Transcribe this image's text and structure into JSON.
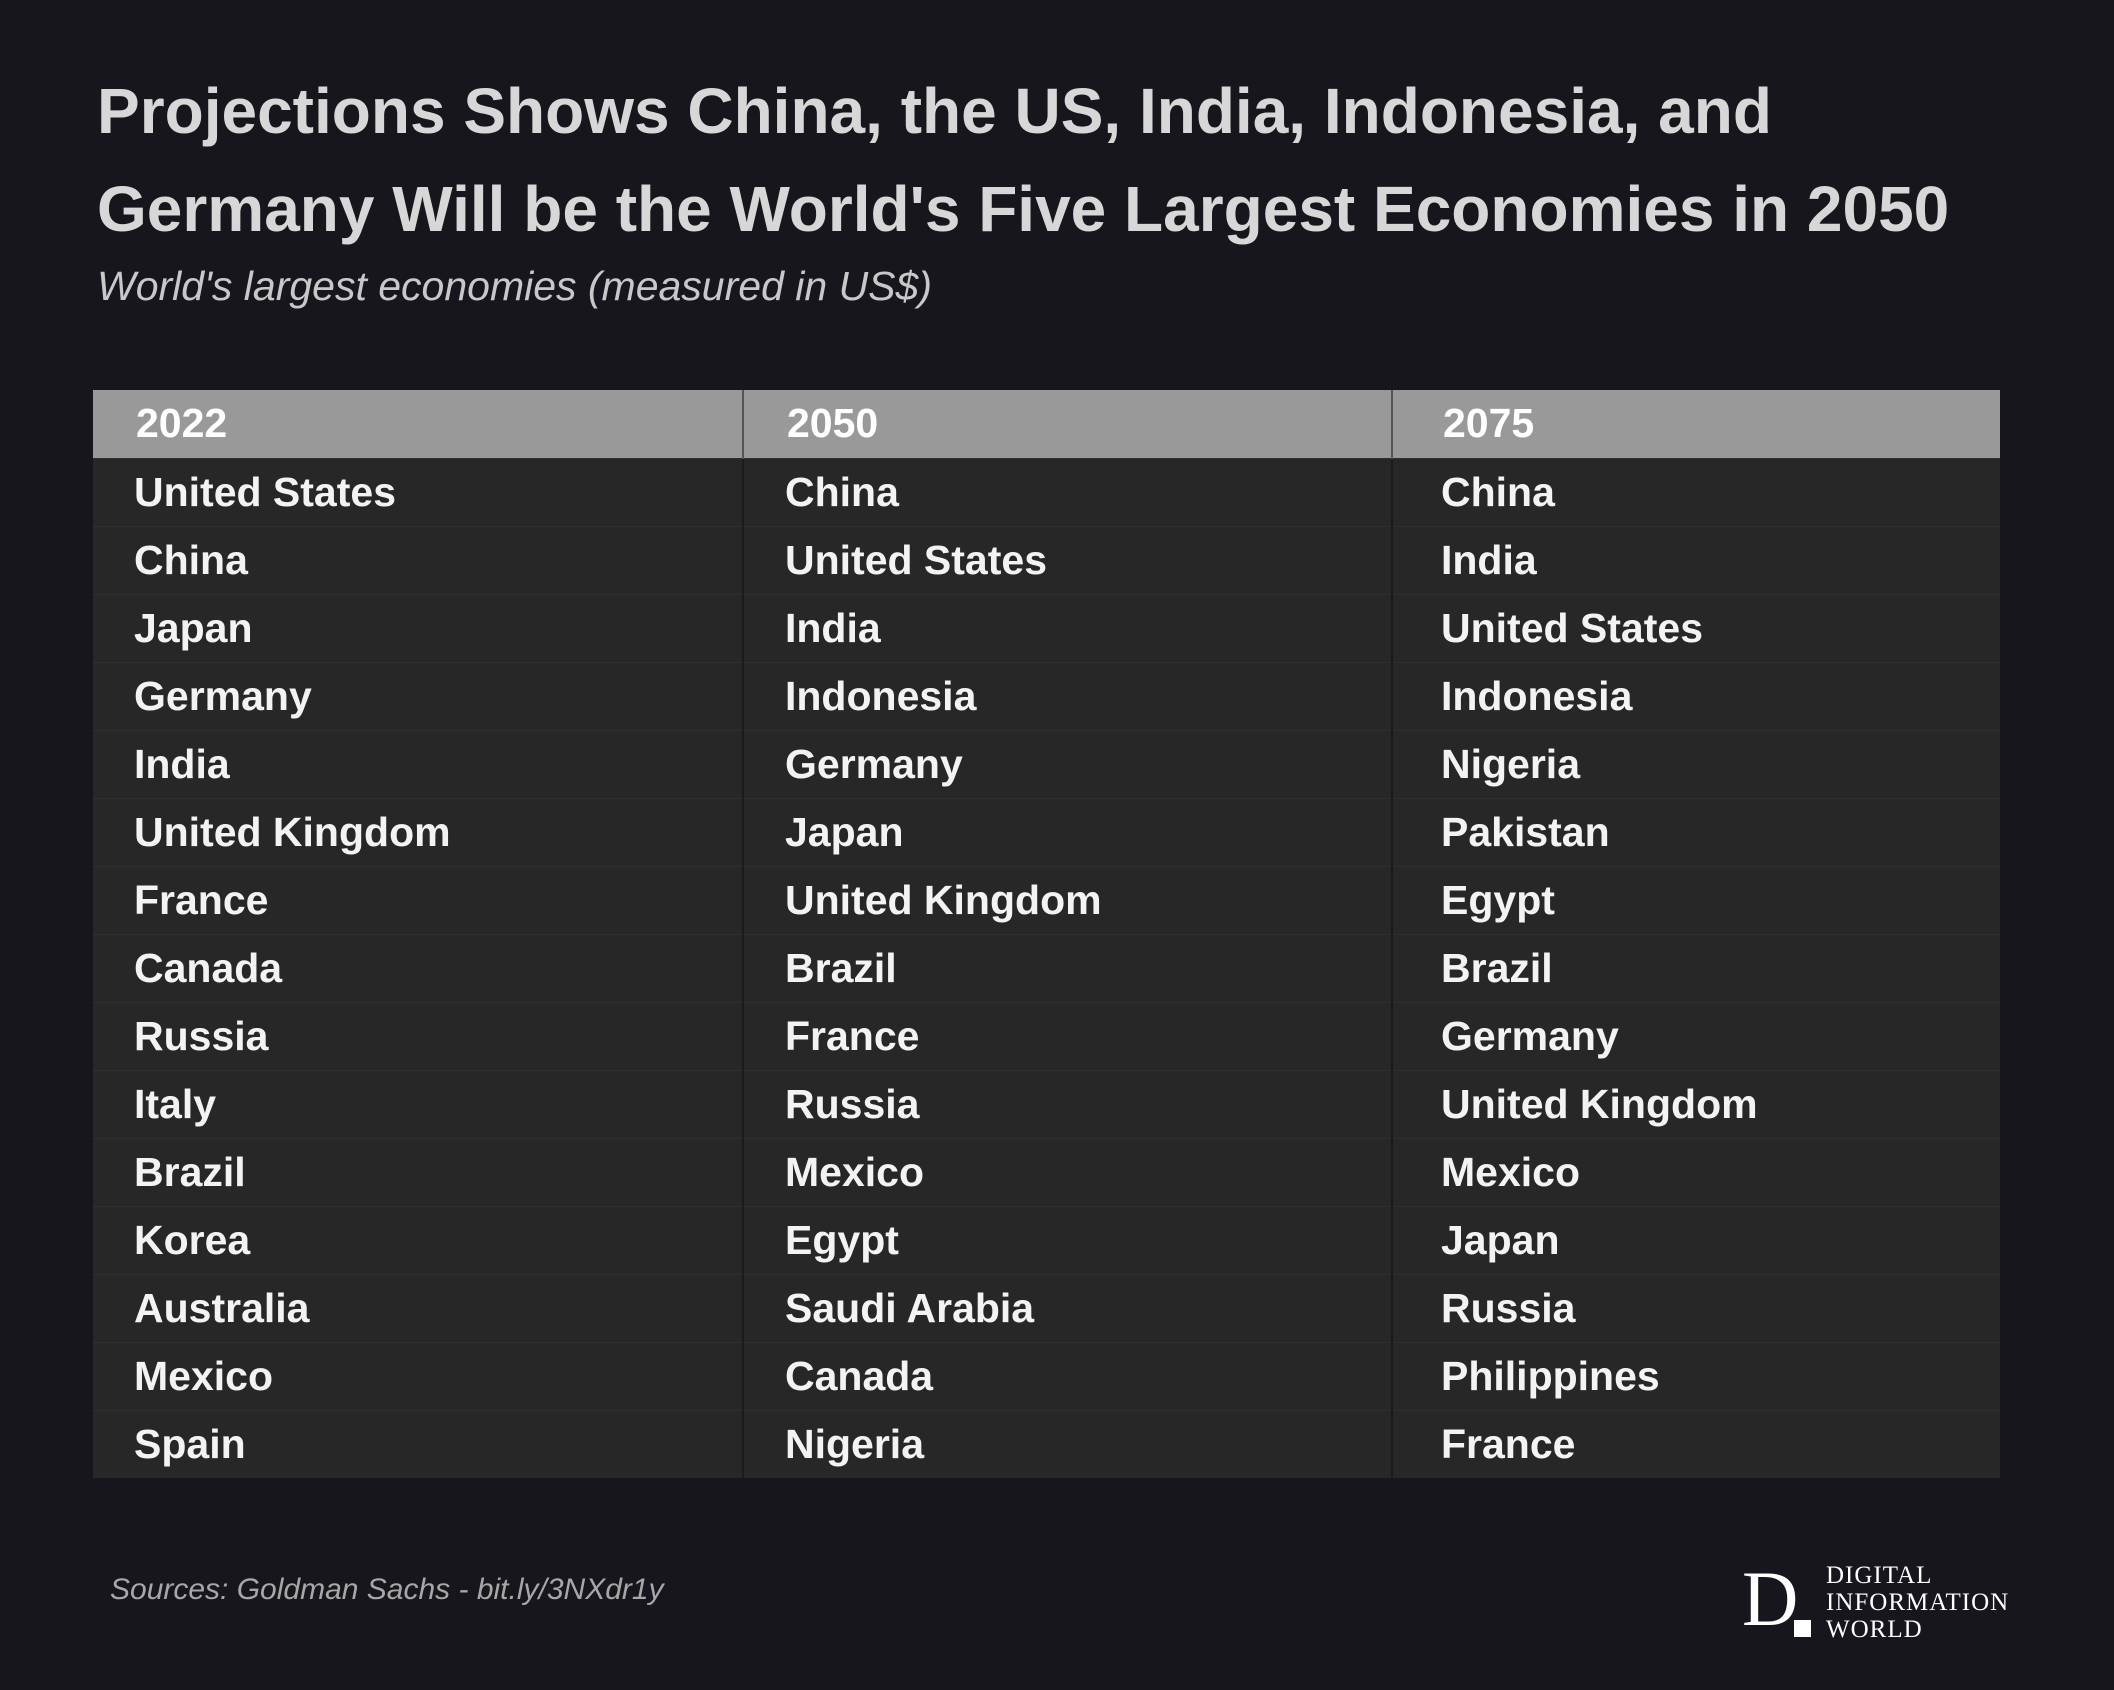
{
  "chart_data": {
    "type": "table",
    "title": "Projections Shows China, the US, India, Indonesia, and Germany Will be the World's Five Largest Economies in 2050",
    "subtitle": "World's largest economies (measured in US$)",
    "columns": [
      "2022",
      "2050",
      "2075"
    ],
    "rows": [
      [
        "United States",
        "China",
        "China"
      ],
      [
        "China",
        "United States",
        "India"
      ],
      [
        "Japan",
        "India",
        "United States"
      ],
      [
        "Germany",
        "Indonesia",
        "Indonesia"
      ],
      [
        "India",
        "Germany",
        "Nigeria"
      ],
      [
        "United Kingdom",
        "Japan",
        "Pakistan"
      ],
      [
        "France",
        "United Kingdom",
        "Egypt"
      ],
      [
        "Canada",
        "Brazil",
        "Brazil"
      ],
      [
        "Russia",
        "France",
        "Germany"
      ],
      [
        "Italy",
        "Russia",
        "United Kingdom"
      ],
      [
        "Brazil",
        "Mexico",
        "Mexico"
      ],
      [
        "Korea",
        "Egypt",
        "Japan"
      ],
      [
        "Australia",
        "Saudi Arabia",
        "Russia"
      ],
      [
        "Mexico",
        "Canada",
        "Philippines"
      ],
      [
        "Spain",
        "Nigeria",
        "France"
      ]
    ]
  },
  "footer": {
    "source": "Sources: Goldman Sachs - bit.ly/3NXdr1y"
  },
  "logo": {
    "letter": "D",
    "lines": [
      "DIGITAL",
      "INFORMATION",
      "WORLD"
    ]
  },
  "colors": {
    "background": "#17161d",
    "header_fill": "#999999",
    "row_fill": "#272727",
    "text": "#f3f3f3"
  }
}
